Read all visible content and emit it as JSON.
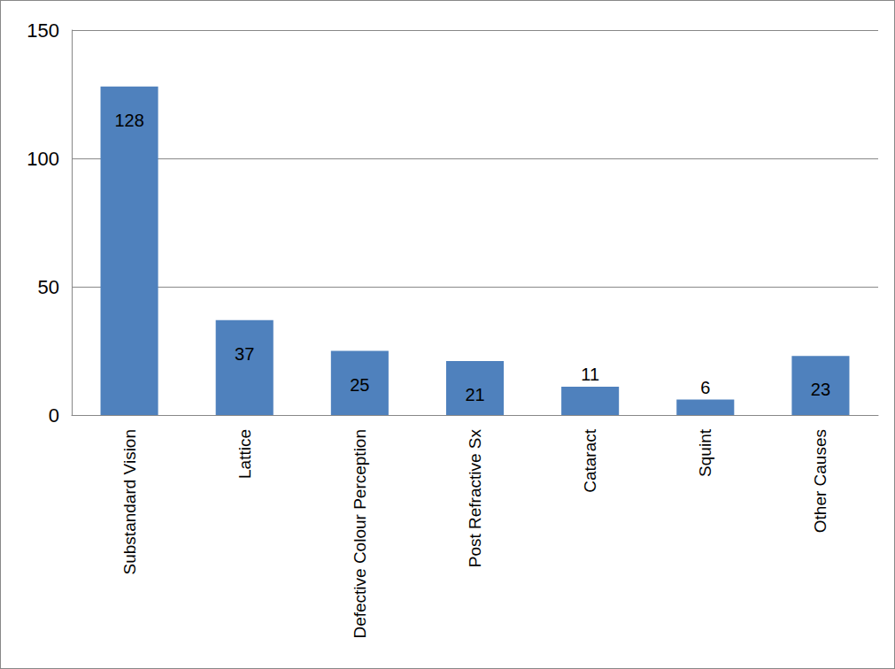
{
  "chart_data": {
    "type": "bar",
    "categories": [
      "Substandard Vision",
      "Lattice",
      "Defective Colour Perception",
      "Post Refractive Sx",
      "Cataract",
      "Squint",
      "Other Causes"
    ],
    "values": [
      128,
      37,
      25,
      21,
      11,
      6,
      23
    ],
    "color": "#4f81bd",
    "ylim": [
      0,
      150
    ],
    "yticks": [
      0,
      50,
      100,
      150
    ],
    "grid": true,
    "data_labels": true
  }
}
